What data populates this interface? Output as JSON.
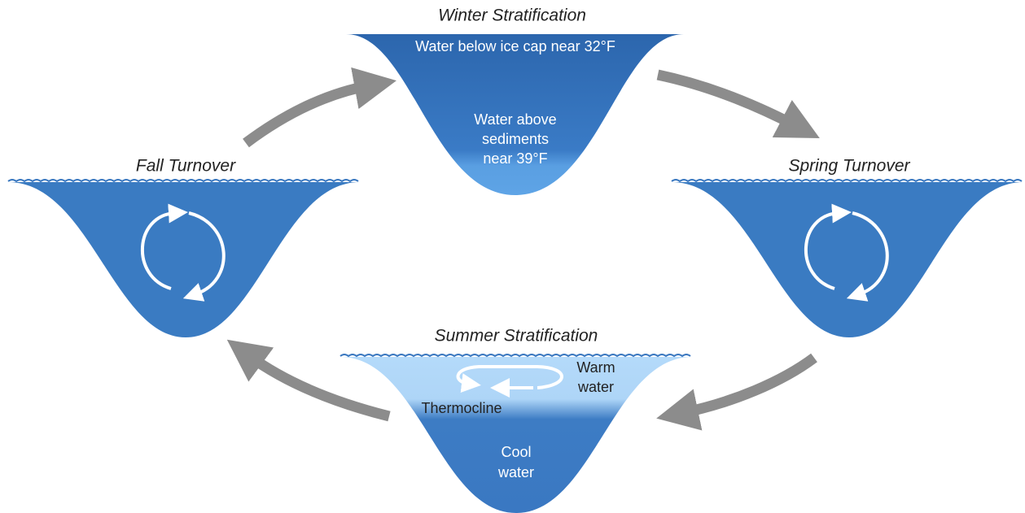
{
  "winter": {
    "title": "Winter Stratification",
    "top_label": "Water below ice cap near 32°F",
    "bottom_label": [
      "Water above",
      "sediments",
      "near 39°F"
    ]
  },
  "fall": {
    "title": "Fall Turnover"
  },
  "spring": {
    "title": "Spring Turnover"
  },
  "summer": {
    "title": "Summer Stratification",
    "warm_label": [
      "Warm",
      "water"
    ],
    "thermocline_label": "Thermocline",
    "cool_label": [
      "Cool",
      "water"
    ]
  }
}
